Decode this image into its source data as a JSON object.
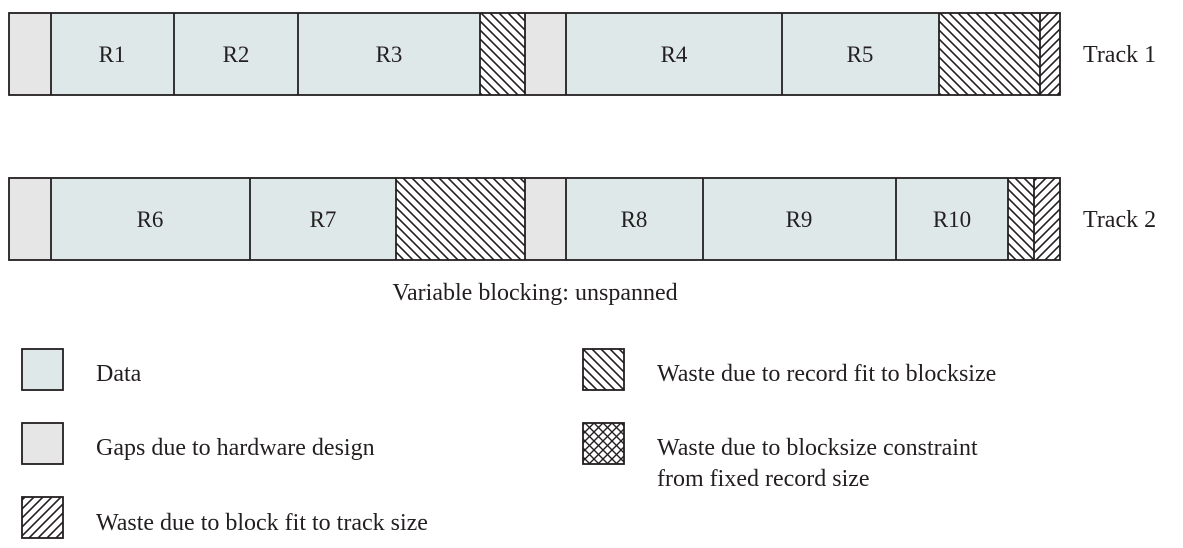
{
  "colors": {
    "data": "#dfe8e8",
    "gap": "#e6e6e6",
    "stroke": "#231f20",
    "text": "#231f20"
  },
  "tracks": [
    {
      "label": "Track 1",
      "segments": [
        {
          "type": "gap"
        },
        {
          "type": "data",
          "label": "R1"
        },
        {
          "type": "data",
          "label": "R2"
        },
        {
          "type": "data",
          "label": "R3"
        },
        {
          "type": "waste-record-fit"
        },
        {
          "type": "gap"
        },
        {
          "type": "data",
          "label": "R4"
        },
        {
          "type": "data",
          "label": "R5"
        },
        {
          "type": "waste-record-fit"
        },
        {
          "type": "waste-track-fit"
        }
      ]
    },
    {
      "label": "Track 2",
      "segments": [
        {
          "type": "gap"
        },
        {
          "type": "data",
          "label": "R6"
        },
        {
          "type": "data",
          "label": "R7"
        },
        {
          "type": "waste-record-fit"
        },
        {
          "type": "gap"
        },
        {
          "type": "data",
          "label": "R8"
        },
        {
          "type": "data",
          "label": "R9"
        },
        {
          "type": "data",
          "label": "R10"
        },
        {
          "type": "waste-record-fit"
        },
        {
          "type": "waste-track-fit"
        }
      ]
    }
  ],
  "caption": "Variable blocking: unspanned",
  "legend": [
    {
      "key": "data",
      "label": "Data"
    },
    {
      "key": "gap",
      "label": "Gaps due to hardware design"
    },
    {
      "key": "waste-track-fit",
      "label": "Waste due to block fit to track size"
    },
    {
      "key": "waste-record-fit",
      "label": "Waste due to record fit to blocksize"
    },
    {
      "key": "waste-fixed-record",
      "label": "Waste due to blocksize constraint",
      "label_line2": "from fixed record size"
    }
  ]
}
